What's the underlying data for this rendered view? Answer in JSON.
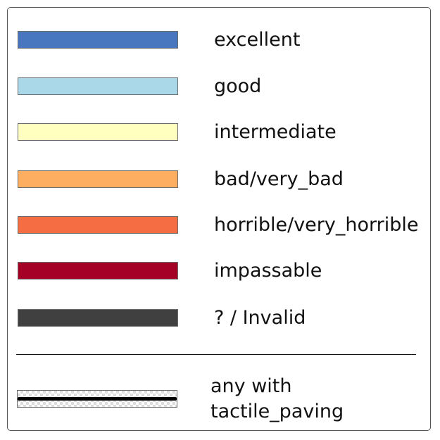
{
  "legend": {
    "items": [
      {
        "label": "excellent",
        "color": "#4876bf"
      },
      {
        "label": "good",
        "color": "#abd8e9"
      },
      {
        "label": "intermediate",
        "color": "#ffffbf"
      },
      {
        "label": "bad/very_bad",
        "color": "#fdae61"
      },
      {
        "label": "horrible/very_horrible",
        "color": "#f46d43"
      },
      {
        "label": "impassable",
        "color": "#a50026"
      },
      {
        "label": "? / Invalid",
        "color": "#404040"
      }
    ],
    "tactile": {
      "line1": "any with",
      "line2": "tactile_paving",
      "line_color": "#000000"
    }
  }
}
